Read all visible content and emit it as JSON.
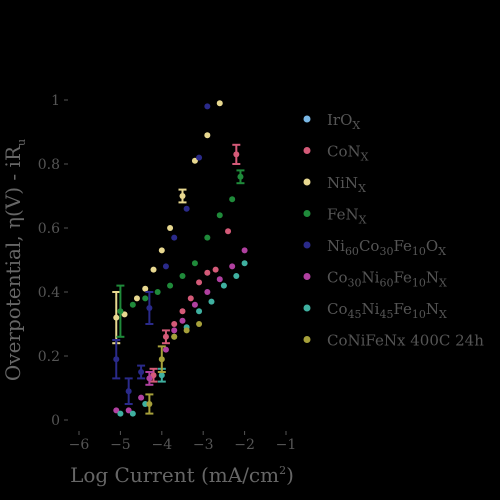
{
  "chart_data": {
    "type": "scatter",
    "xlabel": "Log Current (mA/cm2)",
    "ylabel": "Overpotential, η(V) - iRu",
    "xlim": [
      -6,
      -1
    ],
    "ylim": [
      0,
      1.08
    ],
    "x_ticks": [
      "−6",
      "−5",
      "−4",
      "−3",
      "−2",
      "−1"
    ],
    "y_ticks": [
      "0",
      "0.2",
      "0.4",
      "0.6",
      "0.8",
      "1"
    ],
    "grid": false,
    "legend_position": "right",
    "series": [
      {
        "name": "IrOX",
        "color": "#7ab8e6",
        "points": []
      },
      {
        "name": "CoNX",
        "color": "#d45a78",
        "points": [
          {
            "x": -4.2,
            "y": 0.14,
            "err": 0.02
          },
          {
            "x": -3.9,
            "y": 0.26,
            "err": 0.02
          },
          {
            "x": -3.7,
            "y": 0.3
          },
          {
            "x": -3.5,
            "y": 0.34
          },
          {
            "x": -3.3,
            "y": 0.38
          },
          {
            "x": -3.1,
            "y": 0.43
          },
          {
            "x": -2.9,
            "y": 0.46
          },
          {
            "x": -2.7,
            "y": 0.47
          },
          {
            "x": -2.4,
            "y": 0.59
          },
          {
            "x": -2.2,
            "y": 0.83,
            "err": 0.03
          }
        ]
      },
      {
        "name": "NiNX",
        "color": "#e8d890",
        "points": [
          {
            "x": -5.1,
            "y": 0.32,
            "err": 0.08
          },
          {
            "x": -4.9,
            "y": 0.33
          },
          {
            "x": -4.6,
            "y": 0.38
          },
          {
            "x": -4.4,
            "y": 0.41
          },
          {
            "x": -4.2,
            "y": 0.47
          },
          {
            "x": -4.0,
            "y": 0.53
          },
          {
            "x": -3.8,
            "y": 0.6
          },
          {
            "x": -3.5,
            "y": 0.7,
            "err": 0.02
          },
          {
            "x": -3.2,
            "y": 0.81
          },
          {
            "x": -2.9,
            "y": 0.89
          },
          {
            "x": -2.6,
            "y": 0.99
          }
        ]
      },
      {
        "name": "FeNX",
        "color": "#1f8a3a",
        "points": [
          {
            "x": -5.0,
            "y": 0.34,
            "err": 0.08
          },
          {
            "x": -4.7,
            "y": 0.36
          },
          {
            "x": -4.4,
            "y": 0.38
          },
          {
            "x": -4.1,
            "y": 0.4
          },
          {
            "x": -3.8,
            "y": 0.42
          },
          {
            "x": -3.5,
            "y": 0.45
          },
          {
            "x": -3.2,
            "y": 0.49
          },
          {
            "x": -2.9,
            "y": 0.57
          },
          {
            "x": -2.6,
            "y": 0.64
          },
          {
            "x": -2.3,
            "y": 0.69
          },
          {
            "x": -2.1,
            "y": 0.76,
            "err": 0.02
          }
        ]
      },
      {
        "name": "Ni60Co30Fe10OX",
        "color": "#2a2a8a",
        "points": [
          {
            "x": -5.1,
            "y": 0.19,
            "err": 0.06
          },
          {
            "x": -4.8,
            "y": 0.09,
            "err": 0.04
          },
          {
            "x": -4.5,
            "y": 0.15,
            "err": 0.02
          },
          {
            "x": -4.3,
            "y": 0.35,
            "err": 0.05
          },
          {
            "x": -3.9,
            "y": 0.48
          },
          {
            "x": -3.7,
            "y": 0.57
          },
          {
            "x": -3.4,
            "y": 0.66
          },
          {
            "x": -3.1,
            "y": 0.82
          },
          {
            "x": -2.9,
            "y": 0.98
          }
        ]
      },
      {
        "name": "Co30Ni60Fe10NX",
        "color": "#b040a0",
        "points": [
          {
            "x": -5.1,
            "y": 0.03
          },
          {
            "x": -4.8,
            "y": 0.03
          },
          {
            "x": -4.5,
            "y": 0.07
          },
          {
            "x": -4.3,
            "y": 0.13,
            "err": 0.02
          },
          {
            "x": -3.9,
            "y": 0.22
          },
          {
            "x": -3.7,
            "y": 0.28
          },
          {
            "x": -3.5,
            "y": 0.31
          },
          {
            "x": -3.2,
            "y": 0.36
          },
          {
            "x": -2.9,
            "y": 0.4
          },
          {
            "x": -2.6,
            "y": 0.44
          },
          {
            "x": -2.3,
            "y": 0.48
          },
          {
            "x": -2.0,
            "y": 0.53
          }
        ]
      },
      {
        "name": "Co45Ni45Fe10NX",
        "color": "#3fb0a0",
        "points": [
          {
            "x": -5.0,
            "y": 0.02
          },
          {
            "x": -4.7,
            "y": 0.02
          },
          {
            "x": -4.4,
            "y": 0.05
          },
          {
            "x": -4.0,
            "y": 0.14,
            "err": 0.02
          },
          {
            "x": -3.7,
            "y": 0.26
          },
          {
            "x": -3.4,
            "y": 0.29
          },
          {
            "x": -3.1,
            "y": 0.34
          },
          {
            "x": -2.8,
            "y": 0.37
          },
          {
            "x": -2.5,
            "y": 0.42
          },
          {
            "x": -2.2,
            "y": 0.45
          },
          {
            "x": -2.0,
            "y": 0.49
          }
        ]
      },
      {
        "name": "CoNiFeNx 400C 24h",
        "color": "#a6a03a",
        "points": [
          {
            "x": -4.3,
            "y": 0.05,
            "err": 0.03
          },
          {
            "x": -4.0,
            "y": 0.19,
            "err": 0.04
          },
          {
            "x": -3.7,
            "y": 0.26
          },
          {
            "x": -3.4,
            "y": 0.28
          },
          {
            "x": -3.1,
            "y": 0.3
          }
        ]
      }
    ]
  }
}
